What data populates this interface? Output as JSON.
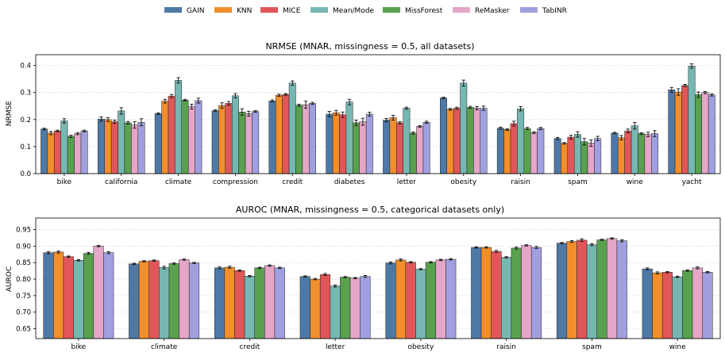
{
  "legend": {
    "methods": [
      "GAIN",
      "KNN",
      "MICE",
      "Mean/Mode",
      "MissForest",
      "ReMasker",
      "TabINR"
    ],
    "colors": [
      "#4e79a7",
      "#f28e2b",
      "#e15759",
      "#76b7b2",
      "#59a14f",
      "#e5a6c8",
      "#a0a0e0"
    ]
  },
  "chart_data": [
    {
      "type": "bar",
      "title": "NRMSE (MNAR, missingness = 0.5, all datasets)",
      "xlabel": "",
      "ylabel": "NRMSE",
      "ylim": [
        0,
        0.44
      ],
      "yticks": [
        0.0,
        0.1,
        0.2,
        0.3,
        0.4
      ],
      "ytick_labels": [
        "0.0",
        "0.1",
        "0.2",
        "0.3",
        "0.4"
      ],
      "grid": true,
      "categories": [
        "bike",
        "california",
        "climate",
        "compression",
        "credit",
        "diabetes",
        "letter",
        "obesity",
        "raisin",
        "spam",
        "wine",
        "yacht"
      ],
      "series": [
        {
          "name": "GAIN",
          "values": [
            0.165,
            0.202,
            0.222,
            0.233,
            0.269,
            0.22,
            0.198,
            0.28,
            0.168,
            0.13,
            0.15,
            0.31
          ]
        },
        {
          "name": "KNN",
          "values": [
            0.15,
            0.2,
            0.268,
            0.252,
            0.29,
            0.225,
            0.207,
            0.238,
            0.163,
            0.112,
            0.133,
            0.302
          ]
        },
        {
          "name": "MICE",
          "values": [
            0.158,
            0.192,
            0.287,
            0.26,
            0.293,
            0.218,
            0.188,
            0.242,
            0.185,
            0.135,
            0.158,
            0.326
          ]
        },
        {
          "name": "Mean/Mode",
          "values": [
            0.195,
            0.232,
            0.345,
            0.288,
            0.335,
            0.265,
            0.242,
            0.335,
            0.24,
            0.145,
            0.177,
            0.398
          ]
        },
        {
          "name": "MissForest",
          "values": [
            0.138,
            0.188,
            0.272,
            0.228,
            0.253,
            0.188,
            0.15,
            0.245,
            0.167,
            0.118,
            0.148,
            0.292
          ]
        },
        {
          "name": "ReMasker",
          "values": [
            0.148,
            0.18,
            0.248,
            0.222,
            0.255,
            0.192,
            0.175,
            0.242,
            0.152,
            0.113,
            0.145,
            0.3
          ]
        },
        {
          "name": "TabINR",
          "values": [
            0.158,
            0.19,
            0.27,
            0.23,
            0.26,
            0.22,
            0.19,
            0.242,
            0.167,
            0.13,
            0.148,
            0.291
          ]
        }
      ],
      "errors": [
        [
          0.003,
          0.008,
          0.003,
          0.003,
          0.004,
          0.01,
          0.006,
          0.003,
          0.004,
          0.004,
          0.003,
          0.009
        ],
        [
          0.006,
          0.007,
          0.007,
          0.01,
          0.004,
          0.009,
          0.009,
          0.003,
          0.003,
          0.003,
          0.008,
          0.012
        ],
        [
          0.003,
          0.006,
          0.006,
          0.007,
          0.003,
          0.01,
          0.004,
          0.004,
          0.009,
          0.007,
          0.007,
          0.004
        ],
        [
          0.008,
          0.012,
          0.01,
          0.008,
          0.008,
          0.01,
          0.004,
          0.011,
          0.008,
          0.01,
          0.012,
          0.008
        ],
        [
          0.004,
          0.005,
          0.003,
          0.012,
          0.004,
          0.01,
          0.004,
          0.004,
          0.004,
          0.012,
          0.003,
          0.01
        ],
        [
          0.004,
          0.012,
          0.009,
          0.009,
          0.013,
          0.013,
          0.003,
          0.006,
          0.003,
          0.012,
          0.008,
          0.004
        ],
        [
          0.003,
          0.013,
          0.009,
          0.003,
          0.004,
          0.007,
          0.004,
          0.008,
          0.004,
          0.008,
          0.011,
          0.004
        ]
      ]
    },
    {
      "type": "bar",
      "title": "AUROC (MNAR, missingness = 0.5, categorical datasets only)",
      "xlabel": "",
      "ylabel": "AUROC",
      "ylim": [
        0.62,
        0.985
      ],
      "yticks": [
        0.65,
        0.7,
        0.75,
        0.8,
        0.85,
        0.9,
        0.95
      ],
      "ytick_labels": [
        "0.65",
        "0.70",
        "0.75",
        "0.80",
        "0.85",
        "0.90",
        "0.95"
      ],
      "grid": true,
      "categories": [
        "bike",
        "climate",
        "credit",
        "letter",
        "obesity",
        "raisin",
        "spam",
        "wine"
      ],
      "series": [
        {
          "name": "GAIN",
          "values": [
            0.88,
            0.846,
            0.834,
            0.808,
            0.849,
            0.896,
            0.909,
            0.831
          ]
        },
        {
          "name": "KNN",
          "values": [
            0.882,
            0.854,
            0.836,
            0.8,
            0.858,
            0.896,
            0.914,
            0.819
          ]
        },
        {
          "name": "MICE",
          "values": [
            0.868,
            0.856,
            0.826,
            0.814,
            0.851,
            0.884,
            0.918,
            0.821
          ]
        },
        {
          "name": "Mean/Mode",
          "values": [
            0.857,
            0.835,
            0.809,
            0.779,
            0.83,
            0.866,
            0.904,
            0.807
          ]
        },
        {
          "name": "MissForest",
          "values": [
            0.878,
            0.847,
            0.834,
            0.806,
            0.851,
            0.894,
            0.919,
            0.826
          ]
        },
        {
          "name": "ReMasker",
          "values": [
            0.9,
            0.859,
            0.841,
            0.803,
            0.858,
            0.902,
            0.923,
            0.834
          ]
        },
        {
          "name": "TabINR",
          "values": [
            0.88,
            0.849,
            0.834,
            0.808,
            0.86,
            0.896,
            0.916,
            0.821
          ]
        }
      ],
      "errors": [
        [
          0.003,
          0.002,
          0.003,
          0.002,
          0.003,
          0.002,
          0.002,
          0.003
        ],
        [
          0.003,
          0.002,
          0.003,
          0.002,
          0.003,
          0.002,
          0.003,
          0.003
        ],
        [
          0.002,
          0.002,
          0.002,
          0.003,
          0.002,
          0.003,
          0.004,
          0.002
        ],
        [
          0.002,
          0.004,
          0.002,
          0.003,
          0.002,
          0.002,
          0.003,
          0.002
        ],
        [
          0.003,
          0.002,
          0.002,
          0.002,
          0.002,
          0.003,
          0.002,
          0.002
        ],
        [
          0.002,
          0.002,
          0.002,
          0.002,
          0.002,
          0.002,
          0.002,
          0.003
        ],
        [
          0.003,
          0.002,
          0.002,
          0.003,
          0.002,
          0.003,
          0.003,
          0.002
        ]
      ]
    }
  ]
}
